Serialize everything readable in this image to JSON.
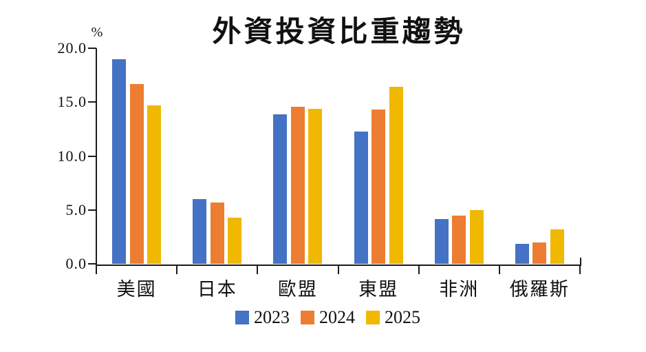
{
  "chart_data": {
    "type": "bar",
    "title": "外資投資比重趨勢",
    "unit_label": "%",
    "categories": [
      "美國",
      "日本",
      "歐盟",
      "東盟",
      "非洲",
      "俄羅斯"
    ],
    "series": [
      {
        "name": "2023",
        "color": "#4472C4",
        "values": [
          19.0,
          6.0,
          13.9,
          12.3,
          4.2,
          1.9
        ]
      },
      {
        "name": "2024",
        "color": "#ED7D31",
        "values": [
          16.7,
          5.7,
          14.6,
          14.3,
          4.5,
          2.0
        ]
      },
      {
        "name": "2025",
        "color": "#F0B800",
        "values": [
          14.7,
          4.3,
          14.4,
          16.4,
          5.0,
          3.2
        ]
      }
    ],
    "xlabel": "",
    "ylabel": "%",
    "ylim": [
      0,
      20
    ],
    "ytick_step": 5,
    "ytick_labels": [
      "20.0",
      "15.0",
      "10.0",
      "5.0",
      "0.0"
    ],
    "grid": false,
    "legend_position": "bottom",
    "axis_color": "#1a1a1a",
    "background_color": "#ffffff"
  }
}
